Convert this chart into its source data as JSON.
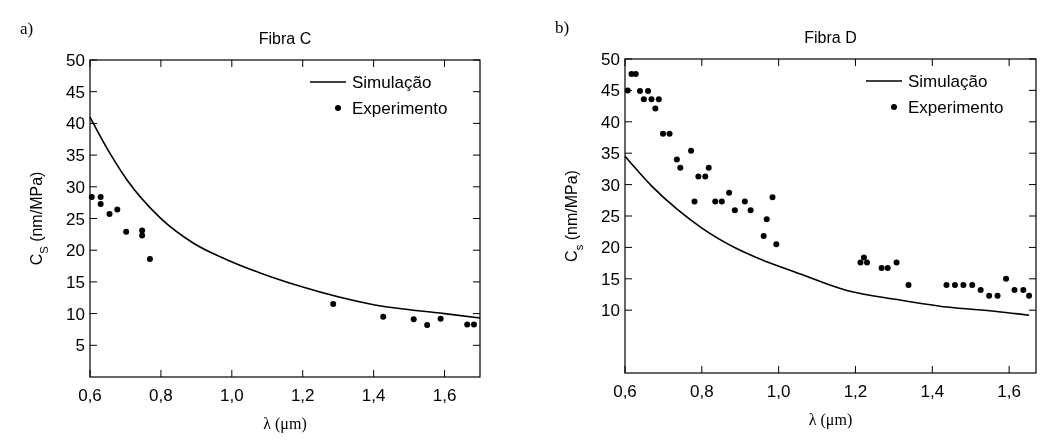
{
  "chart_data": [
    {
      "type": "line",
      "title": "Fibra C",
      "xlabel": "λ (μm)",
      "ylabel": "C$_{S}$ (nm/MPa)",
      "annotations": [
        "a)"
      ],
      "xlim": [
        0.6,
        1.7
      ],
      "ylim": [
        0,
        50
      ],
      "xticks": [
        {
          "value": 0.6,
          "label": "0,6"
        },
        {
          "value": 0.8,
          "label": "0,8"
        },
        {
          "value": 1.0,
          "label": "1,0"
        },
        {
          "value": 1.2,
          "label": "1,2"
        },
        {
          "value": 1.4,
          "label": "1,4"
        },
        {
          "value": 1.6,
          "label": "1,6"
        }
      ],
      "yticks": [
        5,
        10,
        15,
        20,
        25,
        30,
        35,
        40,
        45,
        50
      ],
      "grid": false,
      "legend": "top right",
      "series": [
        {
          "name": "Simulação",
          "color": "#000000",
          "marker": "none",
          "line_style": "solid",
          "x": [
            0.6,
            0.656,
            0.704,
            0.798,
            0.892,
            0.986,
            1.08,
            1.193,
            1.4,
            1.6,
            1.7
          ],
          "values": [
            41.0,
            35.3,
            31.1,
            25.1,
            21.1,
            18.5,
            16.4,
            14.3,
            11.4,
            10.0,
            9.3
          ]
        },
        {
          "name": "Experimento",
          "type": "scatter",
          "color": "#000000",
          "marker": "circle",
          "x": [
            0.605,
            0.63,
            0.63,
            0.655,
            0.677,
            0.702,
            0.747,
            0.747,
            0.769,
            1.286,
            1.427,
            1.513,
            1.551,
            1.589,
            1.664,
            1.683
          ],
          "values": [
            28.4,
            28.4,
            27.3,
            25.7,
            26.4,
            22.9,
            23.1,
            22.3,
            18.6,
            11.5,
            9.5,
            9.1,
            8.2,
            9.2,
            8.3,
            8.3
          ]
        }
      ]
    },
    {
      "type": "line",
      "title": "Fibra D",
      "xlabel": "λ (μm)",
      "ylabel": "C$_{s}$ (nm/MPa)",
      "annotations": [
        "b)"
      ],
      "xlim": [
        0.6,
        1.67
      ],
      "ylim": [
        0,
        50
      ],
      "xticks": [
        {
          "value": 0.6,
          "label": "0,6"
        },
        {
          "value": 0.8,
          "label": "0,8"
        },
        {
          "value": 1.0,
          "label": "1,0"
        },
        {
          "value": 1.2,
          "label": "1,2"
        },
        {
          "value": 1.4,
          "label": "1,4"
        },
        {
          "value": 1.6,
          "label": "1,6"
        }
      ],
      "yticks": [
        10,
        15,
        20,
        25,
        30,
        35,
        40,
        45,
        50
      ],
      "grid": false,
      "legend": "top right",
      "series": [
        {
          "name": "Simulação",
          "color": "#000000",
          "marker": "none",
          "line_style": "solid",
          "x": [
            0.6,
            0.669,
            0.737,
            0.802,
            0.888,
            0.974,
            1.042,
            1.18,
            1.309,
            1.438,
            1.567,
            1.652
          ],
          "values": [
            34.5,
            29.8,
            26.0,
            23.0,
            19.9,
            17.6,
            16.1,
            13.1,
            11.7,
            10.5,
            9.8,
            9.2
          ]
        },
        {
          "name": "Experimento",
          "type": "scatter",
          "color": "#000000",
          "marker": "circle",
          "x": [
            0.607,
            0.617,
            0.628,
            0.639,
            0.649,
            0.66,
            0.669,
            0.679,
            0.688,
            0.699,
            0.716,
            0.735,
            0.744,
            0.772,
            0.781,
            0.791,
            0.809,
            0.818,
            0.835,
            0.852,
            0.871,
            0.886,
            0.912,
            0.927,
            0.961,
            0.969,
            0.984,
            0.994,
            1.213,
            1.222,
            1.23,
            1.268,
            1.284,
            1.307,
            1.338,
            1.437,
            1.459,
            1.481,
            1.504,
            1.526,
            1.548,
            1.57,
            1.592,
            1.614,
            1.637,
            1.652
          ],
          "values": [
            45.0,
            47.6,
            47.6,
            44.9,
            43.6,
            44.9,
            43.6,
            42.1,
            43.6,
            38.1,
            38.1,
            34.0,
            32.7,
            35.4,
            27.3,
            31.3,
            31.3,
            32.7,
            27.3,
            27.3,
            28.7,
            25.9,
            27.3,
            25.9,
            21.8,
            24.5,
            28.0,
            20.5,
            17.6,
            18.4,
            17.6,
            16.7,
            16.7,
            17.6,
            14.0,
            14.0,
            14.0,
            14.0,
            14.0,
            13.2,
            12.3,
            12.3,
            15.0,
            13.2,
            13.2,
            12.3
          ]
        }
      ]
    }
  ]
}
